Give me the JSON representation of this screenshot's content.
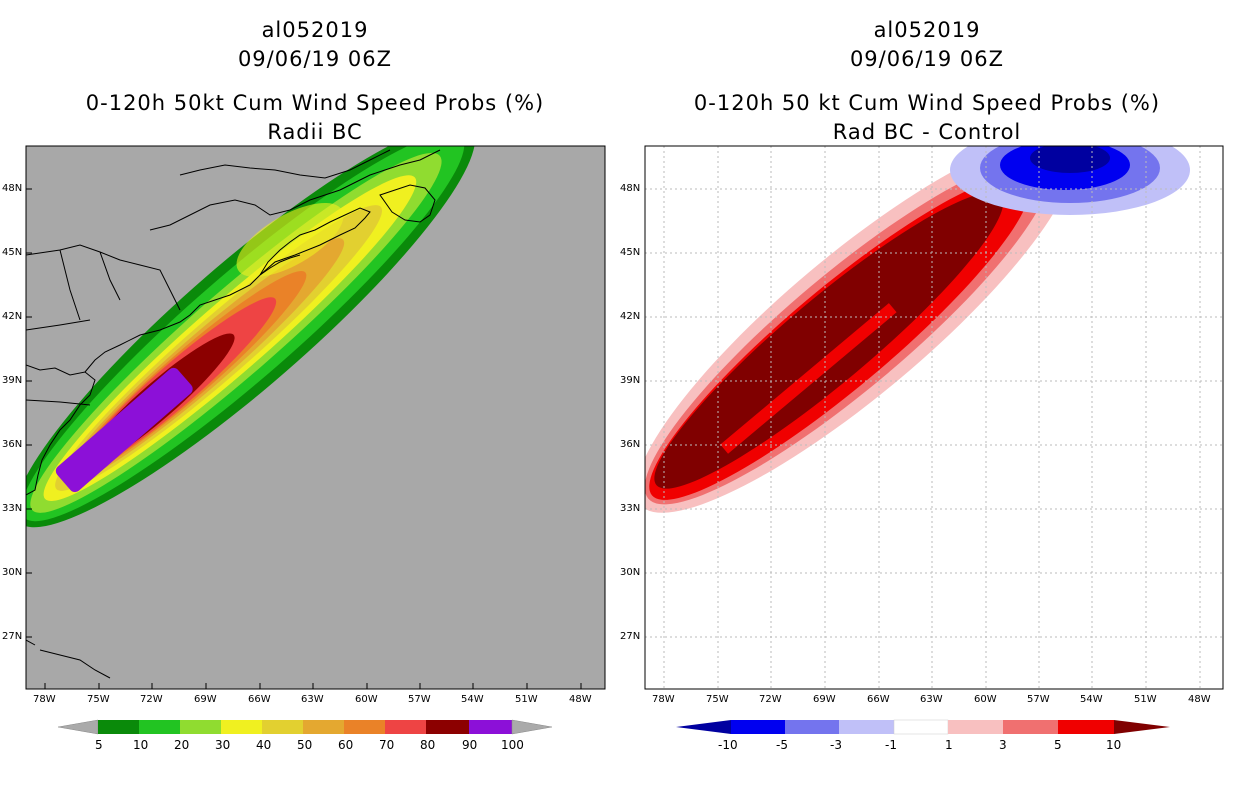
{
  "left_panel": {
    "storm_id": "al052019",
    "date": "09/06/19 06Z",
    "title": "0-120h 50kt Cum Wind Speed Probs (%)",
    "subtitle": "Radii BC",
    "lat_labels": [
      "48N",
      "45N",
      "42N",
      "39N",
      "36N",
      "33N",
      "30N",
      "27N"
    ],
    "lon_labels": [
      "78W",
      "75W",
      "72W",
      "69W",
      "66W",
      "63W",
      "60W",
      "57W",
      "54W",
      "51W",
      "48W"
    ],
    "colorbar": {
      "labels": [
        "5",
        "10",
        "20",
        "30",
        "40",
        "50",
        "60",
        "70",
        "80",
        "90",
        "100"
      ],
      "colors": [
        "#0a8a0a",
        "#22c422",
        "#90dc30",
        "#f0f020",
        "#e2d030",
        "#e4a830",
        "#ea8228",
        "#ee4444",
        "#8c0000",
        "#8c10d8"
      ],
      "end_color": "#aaaaaa"
    },
    "background_color": "#a8a8a8"
  },
  "right_panel": {
    "storm_id": "al052019",
    "date": "09/06/19 06Z",
    "title": "0-120h 50 kt Cum Wind Speed Probs (%)",
    "subtitle": "Rad BC - Control",
    "lat_labels": [
      "48N",
      "45N",
      "42N",
      "39N",
      "36N",
      "33N",
      "30N",
      "27N"
    ],
    "lon_labels": [
      "78W",
      "75W",
      "72W",
      "69W",
      "66W",
      "63W",
      "60W",
      "57W",
      "54W",
      "51W",
      "48W"
    ],
    "colorbar": {
      "labels": [
        "-10",
        "-5",
        "-3",
        "-1",
        "1",
        "3",
        "5",
        "10"
      ],
      "colors": [
        "#0000a0",
        "#0000f0",
        "#7474ee",
        "#c0c0f8",
        "#ffffff",
        "#f8c0c0",
        "#f07070",
        "#f00000"
      ],
      "low_end_color": "#0000a0",
      "high_end_color": "#800000"
    },
    "background_color": "#ffffff"
  }
}
